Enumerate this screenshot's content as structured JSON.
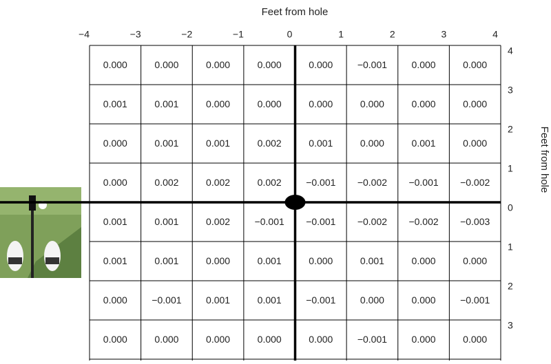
{
  "header": {
    "title": "Feet from hole"
  },
  "side_label": "Feet from hole",
  "x_labels": [
    "−4",
    "−3",
    "−2",
    "−1",
    "0",
    "1",
    "2",
    "3",
    "4"
  ],
  "y_labels": [
    "4",
    "3",
    "2",
    "1",
    "0",
    "1",
    "2",
    "3"
  ],
  "table": {
    "rows": [
      [
        "0.000",
        "0.000",
        "0.000",
        "0.000",
        "0.000",
        "−0.001",
        "0.000",
        "0.000"
      ],
      [
        "0.001",
        "0.001",
        "0.000",
        "0.000",
        "0.000",
        "0.000",
        "0.000",
        "0.000"
      ],
      [
        "0.000",
        "0.001",
        "0.001",
        "0.002",
        "0.001",
        "0.000",
        "0.001",
        "0.000"
      ],
      [
        "0.000",
        "0.002",
        "0.002",
        "0.002",
        "−0.001",
        "−0.002",
        "−0.001",
        "−0.002"
      ],
      [
        "0.001",
        "0.001",
        "0.002",
        "−0.001",
        "−0.001",
        "−0.002",
        "−0.002",
        "−0.003"
      ],
      [
        "0.001",
        "0.001",
        "0.000",
        "0.001",
        "0.000",
        "0.001",
        "0.000",
        "0.000"
      ],
      [
        "0.000",
        "−0.001",
        "0.001",
        "0.001",
        "−0.001",
        "0.000",
        "0.000",
        "−0.001"
      ],
      [
        "0.000",
        "0.000",
        "0.000",
        "0.000",
        "0.000",
        "−0.001",
        "0.000",
        "0.000"
      ]
    ]
  }
}
